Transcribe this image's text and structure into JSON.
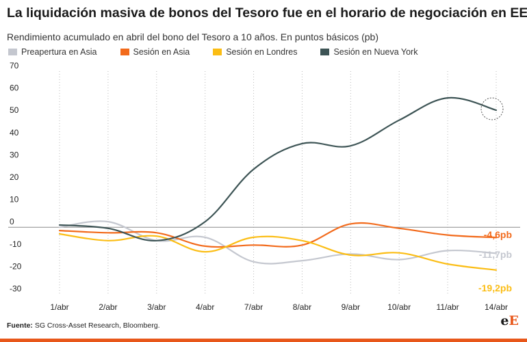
{
  "header": {
    "title": "La liquidación masiva de bonos del Tesoro fue en el horario de negociación en EEUU",
    "subtitle": "Rendimiento acumulado en abril del bono del Tesoro a 10 años. En puntos básicos (pb)"
  },
  "footer": {
    "source_label": "Fuente:",
    "source_text": " SG Cross-Asset Research, Bloomberg.",
    "logo_prefix": "e",
    "logo_cap": "E"
  },
  "chart_data": {
    "type": "line",
    "categories": [
      "1/abr",
      "2/abr",
      "3/abr",
      "4/abr",
      "7/abr",
      "8/abr",
      "9/abr",
      "10/abr",
      "11/abr",
      "14/abr"
    ],
    "ylim": [
      -30,
      70
    ],
    "yticks": [
      70,
      60,
      50,
      40,
      30,
      20,
      10,
      0,
      -10,
      -20,
      -30
    ],
    "grid": "vertical-dotted",
    "legend_position": "top",
    "series": [
      {
        "name": "Preapertura en Asia",
        "color": "#c4c7cf",
        "values": [
          0,
          2.5,
          -6,
          -4.5,
          -15.5,
          -15,
          -12,
          -14.5,
          -10.5,
          -11.7
        ],
        "end_label": "-11,7pb"
      },
      {
        "name": "Sesión en Asia",
        "color": "#f26a1b",
        "values": [
          -1.5,
          -2.5,
          -2.5,
          -8.5,
          -8,
          -8,
          1.5,
          -0.5,
          -3.5,
          -4.6
        ],
        "end_label": "-4,6pb"
      },
      {
        "name": "Sesión en Londres",
        "color": "#fbbd14",
        "values": [
          -3,
          -6,
          -4,
          -11,
          -4.5,
          -6,
          -12.5,
          -11.5,
          -16.5,
          -19.2
        ],
        "end_label": "-19,2pb"
      },
      {
        "name": "Sesión en Nueva York",
        "color": "#3d5455",
        "values": [
          1,
          -0.5,
          -6,
          2.5,
          26,
          37.5,
          36.5,
          48,
          58,
          52.5
        ],
        "end_label": ""
      }
    ]
  }
}
